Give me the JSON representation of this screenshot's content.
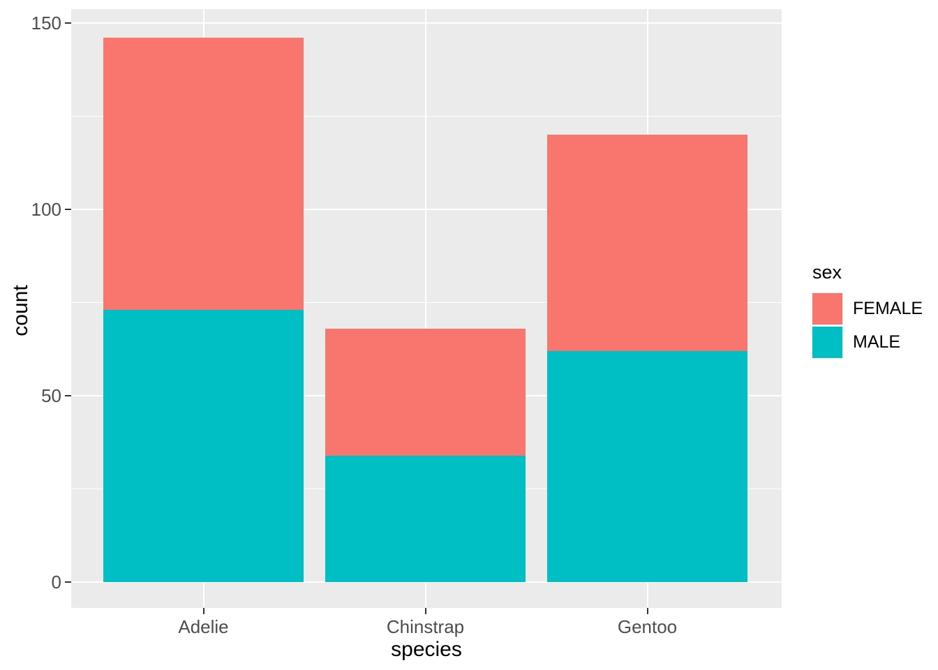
{
  "chart_data": {
    "type": "bar",
    "stacked": true,
    "title": "",
    "xlabel": "species",
    "ylabel": "count",
    "categories": [
      "Adelie",
      "Chinstrap",
      "Gentoo"
    ],
    "series": [
      {
        "name": "FEMALE",
        "color": "#F8766D",
        "values": [
          73,
          34,
          58
        ]
      },
      {
        "name": "MALE",
        "color": "#00BFC4",
        "values": [
          73,
          34,
          62
        ]
      }
    ],
    "totals": [
      146,
      68,
      120
    ],
    "ylim": [
      0,
      150
    ],
    "yticks": [
      0,
      50,
      100,
      150
    ],
    "yticks_minor": [
      25,
      75,
      125
    ],
    "bar_width_fraction": 0.9,
    "legend": {
      "title": "sex",
      "position": "right",
      "entries": [
        {
          "label": "FEMALE",
          "color": "#F8766D"
        },
        {
          "label": "MALE",
          "color": "#00BFC4"
        }
      ]
    },
    "grid": true
  },
  "style": {
    "panel_background": "#EBEBEB",
    "grid_color": "#FFFFFF",
    "tick_label_color": "#4D4D4D",
    "axis_title_color": "#000000",
    "tick_mark_color": "#333333",
    "figure_background": "#FFFFFF"
  }
}
